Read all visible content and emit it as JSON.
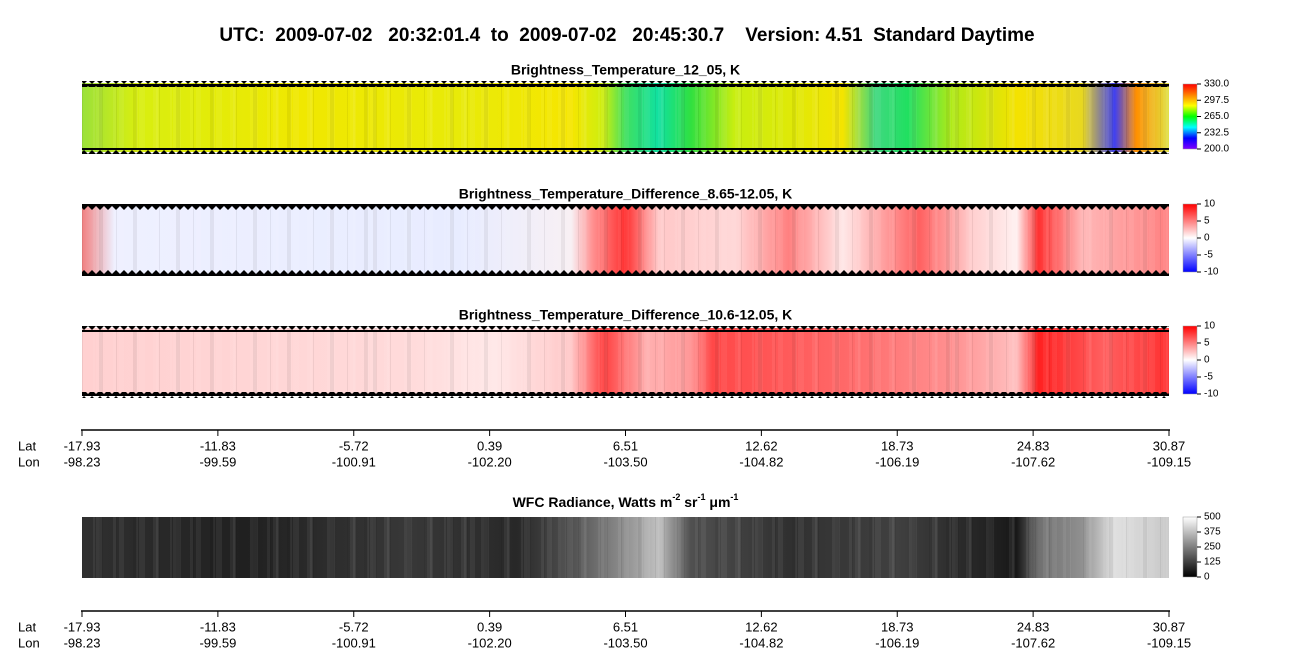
{
  "title": "UTC:  2009-07-02   20:32:01.4  to  2009-07-02   20:45:30.7    Version: 4.51  Standard Daytime",
  "chart_data": [
    {
      "type": "heatmap",
      "title": "Brightness_Temperature_12_05, K",
      "clim": [
        200,
        330
      ],
      "cticks": [
        {
          "value": 200,
          "label": "200.0"
        },
        {
          "value": 232.5,
          "label": "232.5"
        },
        {
          "value": 265,
          "label": "265.0"
        },
        {
          "value": 297.5,
          "label": "297.5"
        },
        {
          "value": 330,
          "label": "330.0"
        }
      ],
      "colormap": [
        "#8000ff",
        "#0000ff",
        "#00ffff",
        "#00ff00",
        "#ffff00",
        "#ff8000",
        "#ff0000"
      ]
    },
    {
      "type": "heatmap",
      "title": "Brightness_Temperature_Difference_8.65-12.05, K",
      "clim": [
        -10,
        10
      ],
      "cticks": [
        -10,
        -5,
        0,
        5,
        10
      ],
      "colormap": [
        "#0000ff",
        "#ffffff",
        "#ff0000"
      ]
    },
    {
      "type": "heatmap",
      "title": "Brightness_Temperature_Difference_10.6-12.05, K",
      "clim": [
        -10,
        10
      ],
      "cticks": [
        -10,
        -5,
        0,
        5,
        10
      ],
      "colormap": [
        "#0000ff",
        "#ffffff",
        "#ff0000"
      ]
    },
    {
      "type": "heatmap",
      "title_parts": [
        "WFC Radiance, Watts m",
        "-2",
        " sr",
        "-1",
        " μm",
        "-1"
      ],
      "clim": [
        0,
        500
      ],
      "cticks": [
        0,
        125,
        250,
        375,
        500
      ],
      "colormap": [
        "#000000",
        "#ffffff"
      ]
    }
  ],
  "axes": [
    {
      "lat_label": "Lat",
      "lon_label": "Lon",
      "lat": [
        "-17.93",
        "-11.83",
        "-5.72",
        "0.39",
        "6.51",
        "12.62",
        "18.73",
        "24.83",
        "30.87"
      ],
      "lon": [
        "-98.23",
        "-99.59",
        "-100.91",
        "-102.20",
        "-103.50",
        "-104.82",
        "-106.19",
        "-107.62",
        "-109.15"
      ]
    },
    {
      "lat_label": "Lat",
      "lon_label": "Lon",
      "lat": [
        "-17.93",
        "-11.83",
        "-5.72",
        "0.39",
        "6.51",
        "12.62",
        "18.73",
        "24.83",
        "30.87"
      ],
      "lon": [
        "-98.23",
        "-99.59",
        "-100.91",
        "-102.20",
        "-103.50",
        "-104.82",
        "-106.19",
        "-107.62",
        "-109.15"
      ]
    }
  ]
}
